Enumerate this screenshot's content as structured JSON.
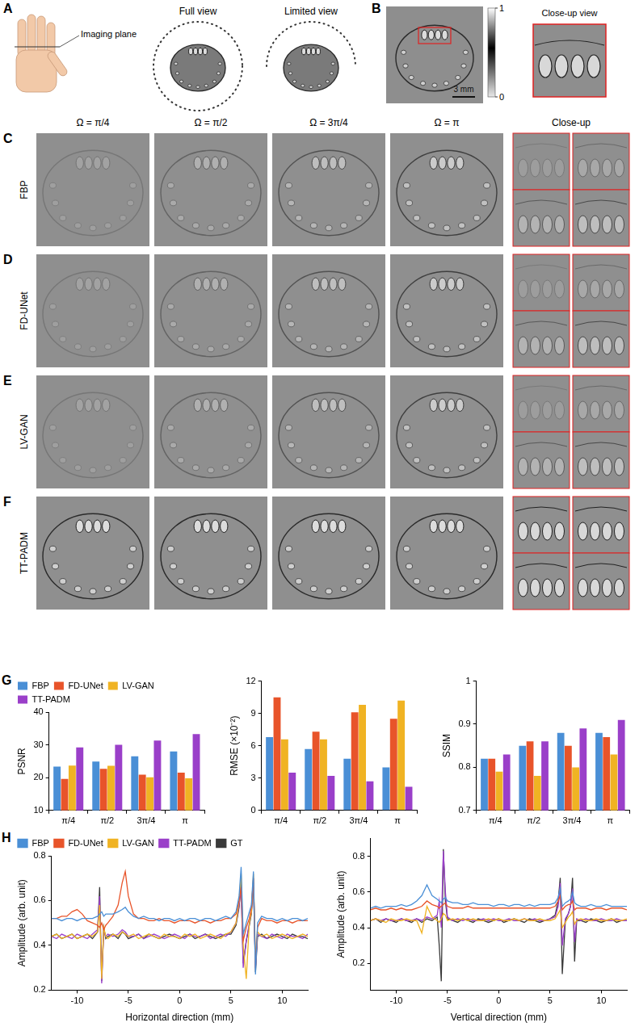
{
  "figure": {
    "panel_letters": [
      "A",
      "B",
      "C",
      "D",
      "E",
      "F",
      "G",
      "H"
    ],
    "A": {
      "imaging_plane": "Imaging plane",
      "full_view": "Full view",
      "limited_view": "Limited view"
    },
    "B": {
      "scale_bar": "3 mm",
      "colorbar": {
        "range": [
          0,
          1
        ],
        "ticks": [
          0,
          1
        ]
      },
      "close_up": "Close-up view"
    },
    "columns": [
      "Ω = π/4",
      "Ω = π/2",
      "Ω = 3π/4",
      "Ω = π"
    ],
    "close_up": "Close-up",
    "rows": [
      "FBP",
      "FD-UNet",
      "LV-GAN",
      "TT-PADM"
    ]
  },
  "chart_data": [
    {
      "type": "bar",
      "categories": [
        "π/4",
        "π/2",
        "3π/4",
        "π"
      ],
      "ylabel": "PSNR",
      "ylim": [
        10,
        40
      ],
      "yticks": [
        10,
        20,
        30,
        40
      ],
      "grid": false,
      "legend": "top",
      "series": [
        {
          "name": "FBP",
          "color": "#4a8fd6",
          "values": [
            23.4,
            24.9,
            26.5,
            28.0
          ]
        },
        {
          "name": "FD-UNet",
          "color": "#e8542a",
          "values": [
            19.6,
            22.7,
            20.9,
            21.5
          ]
        },
        {
          "name": "LV-GAN",
          "color": "#f0b323",
          "values": [
            23.7,
            23.6,
            20.1,
            19.8
          ]
        },
        {
          "name": "TT-PADM",
          "color": "#9a3fc9",
          "values": [
            29.2,
            30.0,
            31.3,
            33.3
          ]
        }
      ]
    },
    {
      "type": "bar",
      "categories": [
        "π/4",
        "π/2",
        "3π/4",
        "π"
      ],
      "ylabel": "RMSE (×10⁻²)",
      "ylim": [
        0,
        12
      ],
      "yticks": [
        0,
        3,
        6,
        9,
        12
      ],
      "grid": false,
      "series": [
        {
          "name": "FBP",
          "color": "#4a8fd6",
          "values": [
            6.8,
            5.7,
            4.8,
            4.0
          ]
        },
        {
          "name": "FD-UNet",
          "color": "#e8542a",
          "values": [
            10.5,
            7.3,
            9.1,
            8.5
          ]
        },
        {
          "name": "LV-GAN",
          "color": "#f0b323",
          "values": [
            6.6,
            6.6,
            9.8,
            10.2
          ]
        },
        {
          "name": "TT-PADM",
          "color": "#9a3fc9",
          "values": [
            3.5,
            3.2,
            2.7,
            2.2
          ]
        }
      ]
    },
    {
      "type": "bar",
      "categories": [
        "π/4",
        "π/2",
        "3π/4",
        "π"
      ],
      "ylabel": "SSIM",
      "ylim": [
        0.7,
        1
      ],
      "yticks": [
        0.7,
        0.8,
        0.9,
        1
      ],
      "grid": false,
      "series": [
        {
          "name": "FBP",
          "color": "#4a8fd6",
          "values": [
            0.82,
            0.85,
            0.88,
            0.88
          ]
        },
        {
          "name": "FD-UNet",
          "color": "#e8542a",
          "values": [
            0.82,
            0.86,
            0.85,
            0.87
          ]
        },
        {
          "name": "LV-GAN",
          "color": "#f0b323",
          "values": [
            0.79,
            0.78,
            0.8,
            0.83
          ]
        },
        {
          "name": "TT-PADM",
          "color": "#9a3fc9",
          "values": [
            0.83,
            0.86,
            0.89,
            0.91
          ]
        }
      ]
    },
    {
      "type": "line",
      "xlabel": "Horizontal direction (mm)",
      "ylabel": "Amplitude (arb. unit)",
      "xlim": [
        -12.5,
        12.5
      ],
      "xticks": [
        -10,
        -5,
        0,
        5,
        10
      ],
      "ylim": [
        0.2,
        0.8
      ],
      "yticks": [
        0.2,
        0.4,
        0.6,
        0.8
      ],
      "grid": false,
      "legend": "top",
      "x": [
        -12.5,
        -12,
        -11.5,
        -11,
        -10.5,
        -10,
        -9.5,
        -9,
        -8.5,
        -8,
        -7.8,
        -7.6,
        -7.4,
        -7.2,
        -7,
        -6.5,
        -6,
        -5.6,
        -5.3,
        -5,
        -4.5,
        -4,
        -3.5,
        -3,
        -2.5,
        -2,
        -1.5,
        -1,
        -0.5,
        0,
        0.5,
        1,
        1.5,
        2,
        2.5,
        3,
        3.5,
        4,
        4.5,
        5,
        5.5,
        5.8,
        6,
        6.2,
        6.5,
        6.8,
        7,
        7.2,
        7.4,
        7.6,
        8,
        8.5,
        9,
        9.5,
        10,
        10.5,
        11,
        11.5,
        12,
        12.5
      ],
      "series": [
        {
          "name": "FBP",
          "color": "#4a8fd6",
          "values": [
            0.52,
            0.52,
            0.51,
            0.52,
            0.52,
            0.51,
            0.52,
            0.52,
            0.52,
            0.53,
            0.54,
            0.55,
            0.53,
            0.54,
            0.54,
            0.54,
            0.55,
            0.56,
            0.57,
            0.55,
            0.53,
            0.52,
            0.53,
            0.52,
            0.52,
            0.51,
            0.52,
            0.52,
            0.51,
            0.52,
            0.51,
            0.52,
            0.52,
            0.51,
            0.52,
            0.52,
            0.51,
            0.52,
            0.53,
            0.52,
            0.55,
            0.62,
            0.75,
            0.45,
            0.5,
            0.55,
            0.58,
            0.73,
            0.27,
            0.5,
            0.53,
            0.52,
            0.52,
            0.51,
            0.52,
            0.51,
            0.52,
            0.52,
            0.51,
            0.52
          ]
        },
        {
          "name": "FD-UNet",
          "color": "#e8542a",
          "values": [
            0.52,
            0.52,
            0.53,
            0.53,
            0.55,
            0.56,
            0.54,
            0.51,
            0.5,
            0.49,
            0.48,
            0.5,
            0.47,
            0.49,
            0.5,
            0.53,
            0.58,
            0.68,
            0.73,
            0.62,
            0.54,
            0.52,
            0.52,
            0.51,
            0.51,
            0.52,
            0.51,
            0.51,
            0.5,
            0.51,
            0.51,
            0.51,
            0.5,
            0.51,
            0.51,
            0.5,
            0.51,
            0.51,
            0.52,
            0.52,
            0.54,
            0.6,
            0.66,
            0.42,
            0.48,
            0.52,
            0.57,
            0.7,
            0.3,
            0.48,
            0.52,
            0.51,
            0.51,
            0.5,
            0.51,
            0.51,
            0.5,
            0.51,
            0.51,
            0.51
          ]
        },
        {
          "name": "LV-GAN",
          "color": "#f0b323",
          "values": [
            0.44,
            0.45,
            0.43,
            0.44,
            0.45,
            0.43,
            0.44,
            0.45,
            0.44,
            0.46,
            0.58,
            0.25,
            0.48,
            0.44,
            0.43,
            0.45,
            0.44,
            0.46,
            0.45,
            0.44,
            0.45,
            0.43,
            0.44,
            0.45,
            0.44,
            0.43,
            0.45,
            0.44,
            0.44,
            0.43,
            0.45,
            0.44,
            0.45,
            0.43,
            0.44,
            0.45,
            0.44,
            0.43,
            0.45,
            0.46,
            0.5,
            0.6,
            0.72,
            0.4,
            0.25,
            0.5,
            0.55,
            0.72,
            0.33,
            0.46,
            0.44,
            0.45,
            0.43,
            0.44,
            0.45,
            0.44,
            0.43,
            0.44,
            0.45,
            0.44
          ]
        },
        {
          "name": "TT-PADM",
          "color": "#9a3fc9",
          "values": [
            0.44,
            0.43,
            0.45,
            0.44,
            0.43,
            0.45,
            0.44,
            0.43,
            0.45,
            0.47,
            0.62,
            0.23,
            0.47,
            0.44,
            0.45,
            0.44,
            0.45,
            0.47,
            0.46,
            0.44,
            0.44,
            0.45,
            0.43,
            0.44,
            0.45,
            0.44,
            0.43,
            0.44,
            0.45,
            0.44,
            0.43,
            0.45,
            0.44,
            0.44,
            0.45,
            0.43,
            0.44,
            0.45,
            0.44,
            0.46,
            0.5,
            0.58,
            0.66,
            0.3,
            0.42,
            0.5,
            0.55,
            0.7,
            0.3,
            0.45,
            0.44,
            0.43,
            0.45,
            0.44,
            0.43,
            0.45,
            0.44,
            0.44,
            0.43,
            0.45
          ]
        },
        {
          "name": "GT",
          "color": "#3a3a3a",
          "values": [
            0.44,
            0.45,
            0.43,
            0.44,
            0.45,
            0.43,
            0.44,
            0.45,
            0.43,
            0.46,
            0.66,
            0.24,
            0.48,
            0.43,
            0.44,
            0.45,
            0.43,
            0.46,
            0.45,
            0.43,
            0.44,
            0.45,
            0.43,
            0.45,
            0.44,
            0.43,
            0.44,
            0.45,
            0.44,
            0.43,
            0.44,
            0.45,
            0.43,
            0.44,
            0.45,
            0.44,
            0.43,
            0.44,
            0.45,
            0.45,
            0.49,
            0.57,
            0.68,
            0.32,
            0.42,
            0.49,
            0.54,
            0.68,
            0.28,
            0.44,
            0.45,
            0.43,
            0.44,
            0.45,
            0.44,
            0.43,
            0.45,
            0.44,
            0.44,
            0.43
          ]
        }
      ]
    },
    {
      "type": "line",
      "xlabel": "Vertical direction (mm)",
      "ylabel": "Amplitude (arb. unit)",
      "xlim": [
        -12.5,
        12.5
      ],
      "xticks": [
        -10,
        -5,
        0,
        5,
        10
      ],
      "ylim": [
        0.05,
        0.9
      ],
      "yticks": [
        0.2,
        0.4,
        0.6,
        0.8
      ],
      "grid": false,
      "x": [
        -12.5,
        -12,
        -11.5,
        -11,
        -10.5,
        -10,
        -9.5,
        -9,
        -8.5,
        -8,
        -7.5,
        -7,
        -6.5,
        -6,
        -5.8,
        -5.6,
        -5.4,
        -5.2,
        -5,
        -4.5,
        -4,
        -3.5,
        -3,
        -2.5,
        -2,
        -1.5,
        -1,
        -0.5,
        0,
        0.5,
        1,
        1.5,
        2,
        2.5,
        3,
        3.5,
        4,
        4.5,
        5,
        5.5,
        5.8,
        6,
        6.2,
        6.5,
        6.8,
        7,
        7.2,
        7.4,
        7.6,
        8,
        8.5,
        9,
        9.5,
        10,
        10.5,
        11,
        11.5,
        12,
        12.5
      ],
      "series": [
        {
          "name": "FBP",
          "color": "#4a8fd6",
          "values": [
            0.51,
            0.52,
            0.51,
            0.52,
            0.52,
            0.52,
            0.53,
            0.52,
            0.53,
            0.55,
            0.58,
            0.64,
            0.58,
            0.56,
            0.55,
            0.54,
            0.56,
            0.57,
            0.55,
            0.54,
            0.54,
            0.53,
            0.53,
            0.54,
            0.53,
            0.53,
            0.53,
            0.52,
            0.53,
            0.53,
            0.52,
            0.53,
            0.53,
            0.52,
            0.53,
            0.52,
            0.53,
            0.53,
            0.53,
            0.54,
            0.57,
            0.62,
            0.52,
            0.54,
            0.55,
            0.56,
            0.6,
            0.54,
            0.53,
            0.52,
            0.52,
            0.53,
            0.52,
            0.52,
            0.53,
            0.52,
            0.52,
            0.52,
            0.52
          ]
        },
        {
          "name": "FD-UNet",
          "color": "#e8542a",
          "values": [
            0.5,
            0.51,
            0.5,
            0.5,
            0.51,
            0.5,
            0.51,
            0.5,
            0.5,
            0.51,
            0.52,
            0.55,
            0.53,
            0.52,
            0.51,
            0.52,
            0.53,
            0.54,
            0.52,
            0.51,
            0.51,
            0.51,
            0.52,
            0.51,
            0.51,
            0.51,
            0.51,
            0.51,
            0.51,
            0.51,
            0.51,
            0.51,
            0.51,
            0.51,
            0.51,
            0.51,
            0.51,
            0.51,
            0.51,
            0.52,
            0.55,
            0.58,
            0.5,
            0.52,
            0.53,
            0.53,
            0.55,
            0.5,
            0.51,
            0.51,
            0.51,
            0.5,
            0.51,
            0.51,
            0.5,
            0.51,
            0.51,
            0.51,
            0.5
          ]
        },
        {
          "name": "LV-GAN",
          "color": "#f0b323",
          "values": [
            0.44,
            0.45,
            0.44,
            0.43,
            0.45,
            0.44,
            0.44,
            0.45,
            0.44,
            0.44,
            0.37,
            0.52,
            0.46,
            0.44,
            0.43,
            0.45,
            0.48,
            0.47,
            0.44,
            0.45,
            0.44,
            0.45,
            0.44,
            0.45,
            0.44,
            0.44,
            0.45,
            0.44,
            0.45,
            0.44,
            0.44,
            0.45,
            0.44,
            0.45,
            0.44,
            0.44,
            0.45,
            0.44,
            0.44,
            0.45,
            0.48,
            0.5,
            0.4,
            0.43,
            0.46,
            0.47,
            0.49,
            0.42,
            0.44,
            0.45,
            0.44,
            0.44,
            0.45,
            0.44,
            0.44,
            0.45,
            0.44,
            0.44,
            0.45
          ]
        },
        {
          "name": "TT-PADM",
          "color": "#9a3fc9",
          "values": [
            0.44,
            0.45,
            0.44,
            0.45,
            0.44,
            0.44,
            0.45,
            0.44,
            0.44,
            0.45,
            0.44,
            0.46,
            0.45,
            0.47,
            0.55,
            0.4,
            0.83,
            0.6,
            0.46,
            0.44,
            0.45,
            0.44,
            0.45,
            0.44,
            0.44,
            0.45,
            0.44,
            0.45,
            0.44,
            0.44,
            0.45,
            0.44,
            0.44,
            0.45,
            0.44,
            0.45,
            0.44,
            0.44,
            0.45,
            0.46,
            0.52,
            0.65,
            0.3,
            0.45,
            0.48,
            0.52,
            0.62,
            0.32,
            0.45,
            0.44,
            0.45,
            0.44,
            0.44,
            0.45,
            0.44,
            0.44,
            0.45,
            0.44,
            0.44
          ]
        },
        {
          "name": "GT",
          "color": "#3a3a3a",
          "values": [
            0.44,
            0.45,
            0.43,
            0.45,
            0.44,
            0.43,
            0.45,
            0.44,
            0.43,
            0.45,
            0.43,
            0.45,
            0.44,
            0.46,
            0.3,
            0.1,
            0.84,
            0.55,
            0.45,
            0.44,
            0.43,
            0.45,
            0.44,
            0.43,
            0.45,
            0.44,
            0.43,
            0.44,
            0.45,
            0.43,
            0.44,
            0.45,
            0.44,
            0.43,
            0.45,
            0.44,
            0.43,
            0.44,
            0.45,
            0.47,
            0.55,
            0.68,
            0.14,
            0.44,
            0.48,
            0.52,
            0.68,
            0.21,
            0.44,
            0.44,
            0.43,
            0.45,
            0.44,
            0.43,
            0.44,
            0.45,
            0.43,
            0.44,
            0.44
          ]
        }
      ]
    }
  ]
}
